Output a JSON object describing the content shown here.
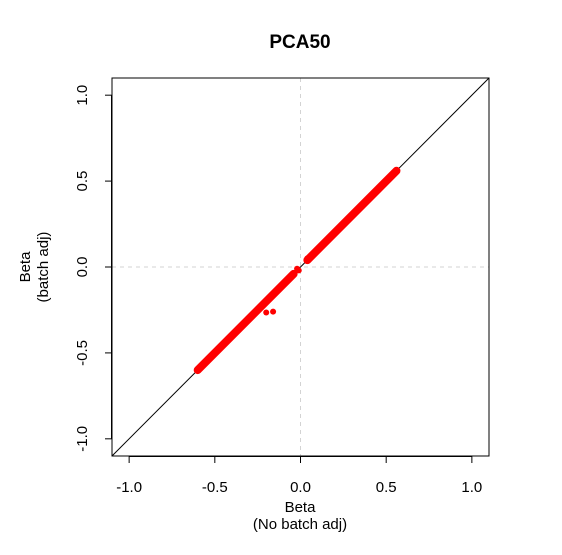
{
  "chart_data": {
    "type": "scatter",
    "title": "PCA50",
    "xlabel": [
      "Beta",
      "(No batch adj)"
    ],
    "ylabel": [
      "Beta",
      "(batch adj)"
    ],
    "xlim": [
      -1.1,
      1.1
    ],
    "ylim": [
      -1.1,
      1.1
    ],
    "xticks": [
      -1.0,
      -0.5,
      0.0,
      0.5,
      1.0
    ],
    "yticks": [
      -1.0,
      -0.5,
      0.0,
      0.5,
      1.0
    ],
    "xtick_labels": [
      "-1.0",
      "-0.5",
      "0.0",
      "0.5",
      "1.0"
    ],
    "ytick_labels": [
      "-1.0",
      "-0.5",
      "0.0",
      "0.5",
      "1.0"
    ],
    "reference_lines": {
      "identity": {
        "slope": 1,
        "intercept": 0,
        "color": "#000000"
      },
      "h0": {
        "y": 0,
        "color": "#d3d3d3",
        "style": "dashed"
      },
      "v0": {
        "x": 0,
        "color": "#d3d3d3",
        "style": "dashed"
      }
    },
    "series": [
      {
        "color": "#ff0000",
        "points": [
          [
            -0.6,
            -0.6
          ],
          [
            -0.58,
            -0.58
          ],
          [
            -0.56,
            -0.56
          ],
          [
            -0.54,
            -0.54
          ],
          [
            -0.52,
            -0.52
          ],
          [
            -0.5,
            -0.5
          ],
          [
            -0.48,
            -0.48
          ],
          [
            -0.46,
            -0.46
          ],
          [
            -0.44,
            -0.44
          ],
          [
            -0.42,
            -0.42
          ],
          [
            -0.4,
            -0.4
          ],
          [
            -0.38,
            -0.38
          ],
          [
            -0.36,
            -0.36
          ],
          [
            -0.34,
            -0.34
          ],
          [
            -0.32,
            -0.32
          ],
          [
            -0.3,
            -0.3
          ],
          [
            -0.28,
            -0.28
          ],
          [
            -0.26,
            -0.26
          ],
          [
            -0.24,
            -0.24
          ],
          [
            -0.22,
            -0.22
          ],
          [
            -0.2,
            -0.2
          ],
          [
            -0.18,
            -0.18
          ],
          [
            -0.16,
            -0.16
          ],
          [
            -0.14,
            -0.14
          ],
          [
            -0.12,
            -0.12
          ],
          [
            -0.1,
            -0.1
          ],
          [
            -0.08,
            -0.08
          ],
          [
            -0.06,
            -0.06
          ],
          [
            -0.04,
            -0.04
          ],
          [
            -0.2,
            -0.265
          ],
          [
            -0.16,
            -0.26
          ],
          [
            -0.02,
            -0.01
          ],
          [
            -0.01,
            -0.02
          ],
          [
            0.04,
            0.05
          ],
          [
            0.06,
            0.06
          ],
          [
            0.08,
            0.08
          ],
          [
            0.1,
            0.1
          ],
          [
            0.12,
            0.12
          ],
          [
            0.14,
            0.14
          ],
          [
            0.16,
            0.16
          ],
          [
            0.18,
            0.18
          ],
          [
            0.2,
            0.2
          ],
          [
            0.22,
            0.22
          ],
          [
            0.24,
            0.24
          ],
          [
            0.26,
            0.26
          ],
          [
            0.28,
            0.28
          ],
          [
            0.3,
            0.3
          ],
          [
            0.32,
            0.32
          ],
          [
            0.34,
            0.34
          ],
          [
            0.36,
            0.36
          ],
          [
            0.38,
            0.38
          ],
          [
            0.4,
            0.4
          ],
          [
            0.42,
            0.42
          ],
          [
            0.44,
            0.44
          ],
          [
            0.46,
            0.46
          ],
          [
            0.48,
            0.48
          ],
          [
            0.5,
            0.5
          ],
          [
            0.52,
            0.52
          ],
          [
            0.54,
            0.54
          ],
          [
            0.56,
            0.56
          ]
        ],
        "bands": [
          {
            "from": -0.6,
            "to": -0.04
          },
          {
            "from": 0.04,
            "to": 0.56
          }
        ]
      }
    ]
  }
}
